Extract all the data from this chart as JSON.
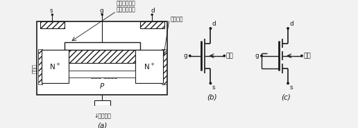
{
  "bg_color": "#f2f2f2",
  "line_color": "#1a1a1a",
  "text_color": "#1a1a1a",
  "font_size": 6.5,
  "title_a": "(a)",
  "title_b": "(b)",
  "title_c": "(c)"
}
